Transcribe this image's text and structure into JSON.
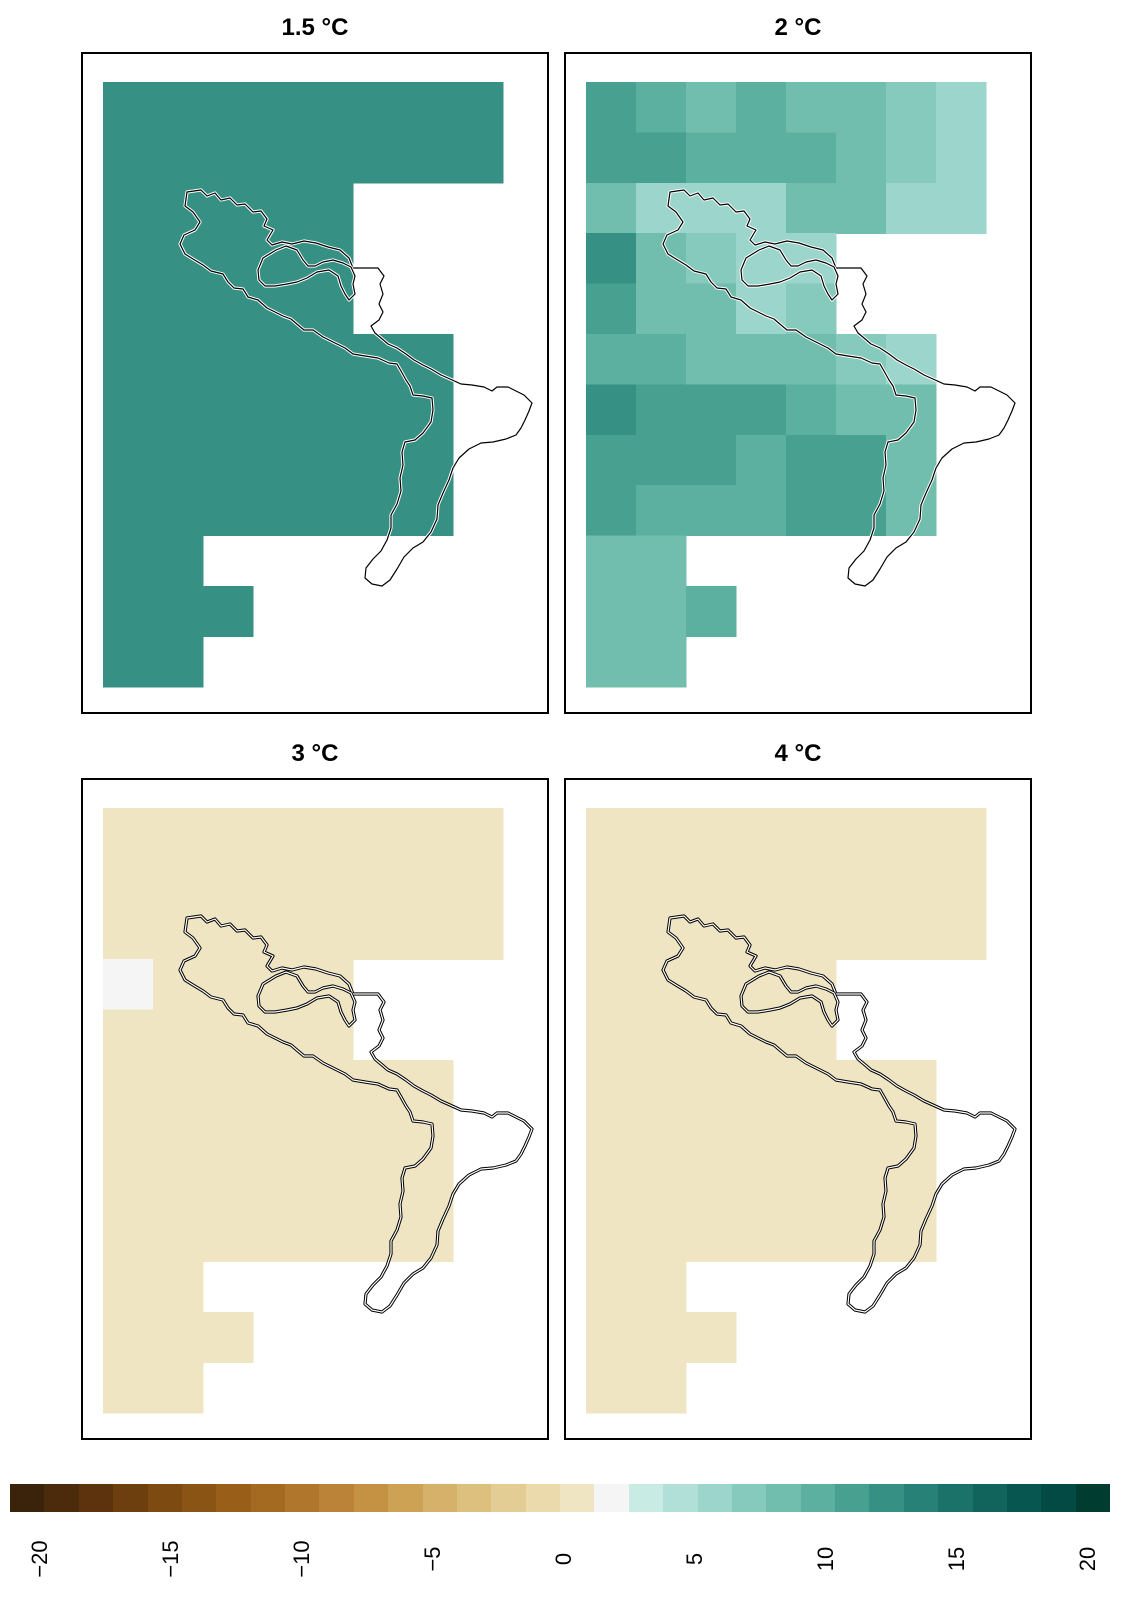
{
  "panels": [
    {
      "title": "1.5 °C",
      "cells": [
        [
          12,
          12,
          12,
          12,
          12,
          12,
          12,
          12
        ],
        [
          12,
          12,
          12,
          12,
          12,
          12,
          12,
          12
        ],
        [
          12,
          12,
          12,
          12,
          12,
          null,
          null,
          null
        ],
        [
          13,
          12,
          12,
          12,
          12,
          null,
          null,
          null
        ],
        [
          13,
          12,
          12,
          12,
          12,
          null,
          null,
          null
        ],
        [
          12,
          12,
          12,
          12,
          12,
          12,
          12,
          null
        ],
        [
          13,
          13,
          13,
          13,
          12,
          12,
          12,
          null
        ],
        [
          13,
          13,
          13,
          12,
          12,
          12,
          12,
          null
        ],
        [
          13,
          12,
          12,
          12,
          12,
          12,
          12,
          null
        ],
        [
          12,
          12,
          null,
          null,
          null,
          null,
          null,
          null
        ],
        [
          12,
          12,
          12,
          null,
          null,
          null,
          null,
          null
        ],
        [
          12,
          12,
          null,
          null,
          null,
          null,
          null,
          null
        ]
      ]
    },
    {
      "title": "2 °C",
      "cells": [
        [
          11,
          10,
          9,
          10,
          8,
          8,
          7,
          6
        ],
        [
          11,
          11,
          10,
          10,
          10,
          8,
          7,
          6
        ],
        [
          9,
          6,
          6,
          6,
          8,
          8,
          6,
          6
        ],
        [
          12,
          9,
          7,
          6,
          6,
          null,
          null,
          null
        ],
        [
          11,
          9,
          9,
          6,
          7,
          null,
          null,
          null
        ],
        [
          10,
          10,
          9,
          9,
          8,
          7,
          6,
          null
        ],
        [
          12,
          11,
          11,
          11,
          10,
          9,
          9,
          null
        ],
        [
          11,
          11,
          11,
          10,
          11,
          11,
          9,
          null
        ],
        [
          11,
          10,
          10,
          10,
          11,
          11,
          9,
          null
        ],
        [
          9,
          9,
          null,
          null,
          null,
          null,
          null,
          null
        ],
        [
          9,
          9,
          10,
          null,
          null,
          null,
          null,
          null
        ],
        [
          9,
          9,
          null,
          null,
          null,
          null,
          null,
          null
        ]
      ]
    },
    {
      "title": "3 °C",
      "cells": [
        [
          0,
          0,
          0,
          0,
          0,
          0,
          0,
          0
        ],
        [
          0,
          0,
          0,
          0,
          0,
          0,
          0,
          0
        ],
        [
          0,
          0,
          0,
          0,
          0,
          0,
          0,
          0
        ],
        [
          2,
          0,
          0,
          0,
          0,
          null,
          null,
          null
        ],
        [
          1,
          0,
          0,
          0,
          0,
          null,
          null,
          null
        ],
        [
          0,
          0,
          0,
          0,
          0,
          0,
          0,
          null
        ],
        [
          0,
          0,
          0,
          0,
          0,
          0,
          0,
          null
        ],
        [
          0,
          0,
          0,
          0,
          0,
          0,
          0,
          null
        ],
        [
          0,
          0,
          0,
          0,
          0,
          0,
          0,
          null
        ],
        [
          0,
          0,
          null,
          null,
          null,
          null,
          null,
          null
        ],
        [
          0,
          0,
          0,
          null,
          null,
          null,
          null,
          null
        ],
        [
          0,
          0,
          null,
          null,
          null,
          null,
          null,
          null
        ]
      ]
    },
    {
      "title": "4 °C",
      "cells": [
        [
          0,
          0,
          0,
          0,
          0,
          0,
          0,
          0
        ],
        [
          0,
          0,
          0,
          0,
          0,
          0,
          0,
          0
        ],
        [
          0,
          0,
          0,
          0,
          0,
          0,
          0,
          0
        ],
        [
          0,
          0,
          0,
          0,
          0,
          null,
          null,
          null
        ],
        [
          0,
          0,
          0,
          0,
          0,
          null,
          null,
          null
        ],
        [
          0,
          0,
          0,
          0,
          0,
          0,
          0,
          null
        ],
        [
          0,
          0,
          0,
          0,
          0,
          0,
          0,
          null
        ],
        [
          0,
          0,
          0,
          0,
          0,
          0,
          0,
          null
        ],
        [
          0,
          0,
          0,
          0,
          0,
          0,
          0,
          null
        ],
        [
          0,
          0,
          null,
          null,
          null,
          null,
          null,
          null
        ],
        [
          0,
          0,
          0,
          null,
          null,
          null,
          null,
          null
        ],
        [
          0,
          0,
          null,
          null,
          null,
          null,
          null,
          null
        ]
      ]
    }
  ],
  "legend": {
    "ticks": [
      "−20",
      "−15",
      "−10",
      "−5",
      "0",
      "5",
      "10",
      "15",
      "20"
    ],
    "palette": [
      "#3b230b",
      "#4b2b0c",
      "#5c330c",
      "#6d3f0f",
      "#7d4a12",
      "#8a5415",
      "#995f19",
      "#a56a22",
      "#b0762b",
      "#bb8337",
      "#c59244",
      "#cda255",
      "#d5b169",
      "#ddc07e",
      "#e4cd94",
      "#ebdaab",
      "#f0e5c2",
      "#f5f5f5",
      "#c8ebe4",
      "#b0e0d8",
      "#9bd5cb",
      "#86cabd",
      "#71bdae",
      "#5bb0a0",
      "#48a091",
      "#369184",
      "#288176",
      "#1b7269",
      "#10645c",
      "#085650",
      "#034944",
      "#003c30"
    ],
    "range": [
      -21,
      21
    ]
  }
}
